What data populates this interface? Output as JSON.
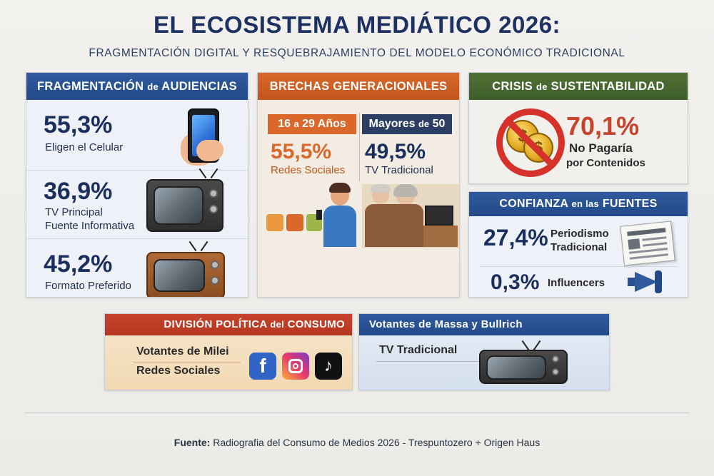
{
  "header": {
    "title": "EL ECOSISTEMA MEDIÁTICO 2026:",
    "subtitle": "FRAGMENTACIÓN DIGITAL Y RESQUEBRAJAMIENTO DEL MODELO ECONÓMICO TRADICIONAL"
  },
  "fragmentacion": {
    "title_a": "FRAGMENTACIÓN",
    "title_de": "de",
    "title_b": "AUDIENCIAS",
    "stats": [
      {
        "value": "55,3%",
        "label1": "Eligen el Celular",
        "label2": ""
      },
      {
        "value": "36,9%",
        "label1": "TV Principal",
        "label2": "Fuente Informativa"
      },
      {
        "value": "45,2%",
        "label1": "Formato Preferido",
        "label2": ""
      }
    ]
  },
  "brechas": {
    "title": "BRECHAS GENERACIONALES",
    "young": {
      "tag_a": "16",
      "tag_mid": "a",
      "tag_b": "29 Años",
      "value": "55,5%",
      "label": "Redes Sociales"
    },
    "old": {
      "tag_a": "Mayores",
      "tag_mid": "de",
      "tag_b": "50",
      "value": "49,5%",
      "label": "TV Tradicional"
    }
  },
  "crisis": {
    "title_a": "CRISIS",
    "title_de": "de",
    "title_b": "SUSTENTABILIDAD",
    "value": "70,1%",
    "label1": "No Pagaría",
    "label2": "por Contenidos",
    "coin_symbol": "$"
  },
  "confianza": {
    "title_a": "CONFIANZA",
    "title_de": "en las",
    "title_b": "FUENTES",
    "items": [
      {
        "value": "27,4%",
        "label1": "Periodismo",
        "label2": "Tradicional"
      },
      {
        "value": "0,3%",
        "label1": "Influencers",
        "label2": ""
      }
    ]
  },
  "politica": {
    "title_a": "DIVISIÓN POLÍTICA",
    "title_de": "del",
    "title_b": "CONSUMO",
    "line1": "Votantes de Milei",
    "line2": "Redes Sociales",
    "apps": [
      "facebook-icon",
      "instagram-icon",
      "tiktok-icon"
    ]
  },
  "massa": {
    "title": "Votantes de Massa y Bullrich",
    "line1": "TV Tradicional"
  },
  "footer": {
    "source_label": "Fuente:",
    "source_text": "Radiografia del Consumo de Medios 2026 - Trespuntozero + Origen Haus"
  },
  "colors": {
    "navy": "#1d3263",
    "blue_head": "#2f5a9e",
    "orange_head": "#d9682a",
    "green_head": "#4f7035",
    "red_accent": "#c8432d"
  }
}
